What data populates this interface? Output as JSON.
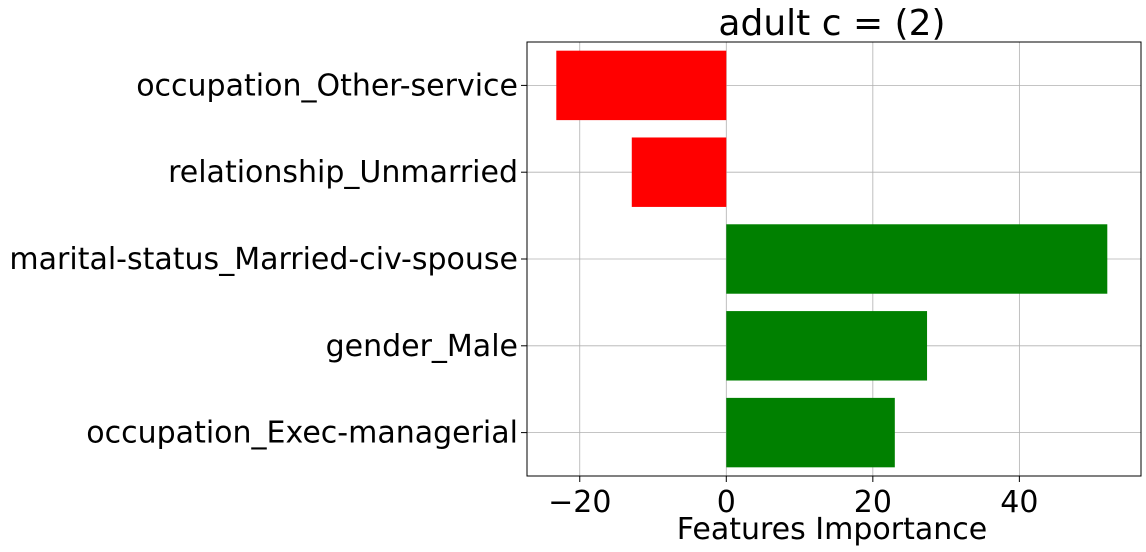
{
  "chart_data": {
    "type": "bar",
    "orientation": "horizontal",
    "title": "adult c = (2)",
    "xlabel": "Features Importance",
    "ylabel": "",
    "categories": [
      "occupation_Other-service",
      "relationship_Unmarried",
      "marital-status_Married-civ-spouse",
      "gender_Male",
      "occupation_Exec-managerial"
    ],
    "values": [
      -23.2,
      -12.9,
      52.0,
      27.4,
      23.0
    ],
    "xlim": [
      -27.2,
      56.6
    ],
    "xticks": [
      -20,
      0,
      20,
      40
    ],
    "xtick_labels": [
      "−20",
      "0",
      "20",
      "40"
    ],
    "grid": true,
    "colors": {
      "positive": "#008000",
      "negative": "#ff0000"
    }
  }
}
